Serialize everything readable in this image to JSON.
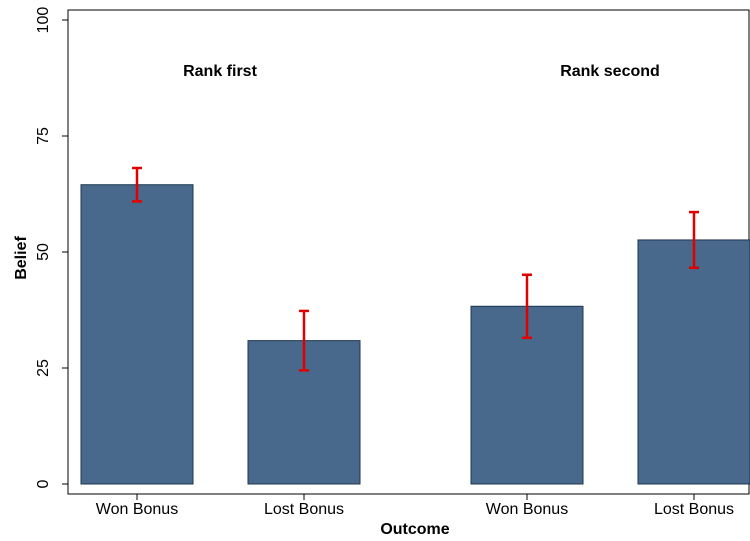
{
  "chart_data": {
    "type": "bar",
    "group_labels": [
      "Rank first",
      "Rank second"
    ],
    "categories": [
      "Won Bonus",
      "Lost Bonus",
      "Won Bonus",
      "Lost Bonus"
    ],
    "values": [
      64.5,
      30.9,
      38.3,
      52.6
    ],
    "errors": [
      3.6,
      6.4,
      6.8,
      6.0
    ],
    "color": "#48698c",
    "error_color": "#e00000",
    "ylabel": "Belief",
    "xlabel": "Outcome",
    "ylim": [
      0,
      100
    ],
    "yticks": [
      0,
      25,
      50,
      75,
      100
    ],
    "grid": false
  }
}
